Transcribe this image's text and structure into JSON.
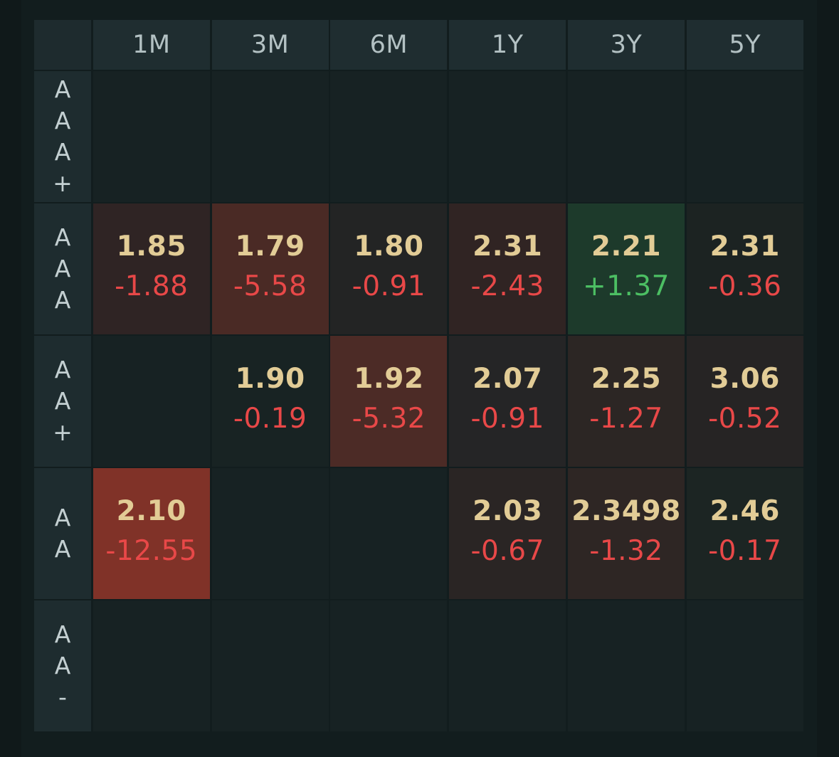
{
  "columns": [
    "1M",
    "3M",
    "6M",
    "1Y",
    "3Y",
    "5Y"
  ],
  "colors": {
    "yield_text": "#e2cc96",
    "negative": "#e84848",
    "positive": "#4cbf63",
    "cell_default": "#172223"
  },
  "rows": [
    {
      "label_chars": [
        "A",
        "A",
        "A",
        "+"
      ],
      "cells": [
        {
          "yield": "",
          "change": "",
          "bg": "#172223",
          "dir": "neg"
        },
        {
          "yield": "",
          "change": "",
          "bg": "#172223",
          "dir": "neg"
        },
        {
          "yield": "",
          "change": "",
          "bg": "#172223",
          "dir": "neg"
        },
        {
          "yield": "",
          "change": "",
          "bg": "#172223",
          "dir": "neg"
        },
        {
          "yield": "",
          "change": "",
          "bg": "#172223",
          "dir": "neg"
        },
        {
          "yield": "",
          "change": "",
          "bg": "#172223",
          "dir": "neg"
        }
      ]
    },
    {
      "label_chars": [
        "A",
        "A",
        "A"
      ],
      "cells": [
        {
          "yield": "1.85",
          "change": "-1.88",
          "bg": "#2f2424",
          "dir": "neg"
        },
        {
          "yield": "1.79",
          "change": "-5.58",
          "bg": "#4a2a25",
          "dir": "neg"
        },
        {
          "yield": "1.80",
          "change": "-0.91",
          "bg": "#232424",
          "dir": "neg"
        },
        {
          "yield": "2.31",
          "change": "-2.43",
          "bg": "#302423",
          "dir": "neg"
        },
        {
          "yield": "2.21",
          "change": "+1.37",
          "bg": "#1d3a2b",
          "dir": "pos"
        },
        {
          "yield": "2.31",
          "change": "-0.36",
          "bg": "#1c2322",
          "dir": "neg"
        }
      ]
    },
    {
      "label_chars": [
        "A",
        "A",
        "+"
      ],
      "cells": [
        {
          "yield": "",
          "change": "",
          "bg": "#172223",
          "dir": "neg"
        },
        {
          "yield": "1.90",
          "change": "-0.19",
          "bg": "#182323",
          "dir": "neg"
        },
        {
          "yield": "1.92",
          "change": "-5.32",
          "bg": "#4c2b26",
          "dir": "neg"
        },
        {
          "yield": "2.07",
          "change": "-0.91",
          "bg": "#252526",
          "dir": "neg"
        },
        {
          "yield": "2.25",
          "change": "-1.27",
          "bg": "#2c2624",
          "dir": "neg"
        },
        {
          "yield": "3.06",
          "change": "-0.52",
          "bg": "#262424",
          "dir": "neg"
        }
      ]
    },
    {
      "label_chars": [
        "A",
        "A"
      ],
      "cells": [
        {
          "yield": "2.10",
          "change": "-12.55",
          "bg": "#803228",
          "dir": "neg"
        },
        {
          "yield": "",
          "change": "",
          "bg": "#172223",
          "dir": "neg"
        },
        {
          "yield": "",
          "change": "",
          "bg": "#172223",
          "dir": "neg"
        },
        {
          "yield": "2.03",
          "change": "-0.67",
          "bg": "#2a2524",
          "dir": "neg"
        },
        {
          "yield": "2.3498",
          "change": "-1.32",
          "bg": "#2e2624",
          "dir": "neg"
        },
        {
          "yield": "2.46",
          "change": "-0.17",
          "bg": "#1c2523",
          "dir": "neg"
        }
      ]
    },
    {
      "label_chars": [
        "A",
        "A",
        "-"
      ],
      "cells": [
        {
          "yield": "",
          "change": "",
          "bg": "#172223",
          "dir": "neg"
        },
        {
          "yield": "",
          "change": "",
          "bg": "#172223",
          "dir": "neg"
        },
        {
          "yield": "",
          "change": "",
          "bg": "#172223",
          "dir": "neg"
        },
        {
          "yield": "",
          "change": "",
          "bg": "#172223",
          "dir": "neg"
        },
        {
          "yield": "",
          "change": "",
          "bg": "#172223",
          "dir": "neg"
        },
        {
          "yield": "",
          "change": "",
          "bg": "#172223",
          "dir": "neg"
        }
      ]
    }
  ]
}
